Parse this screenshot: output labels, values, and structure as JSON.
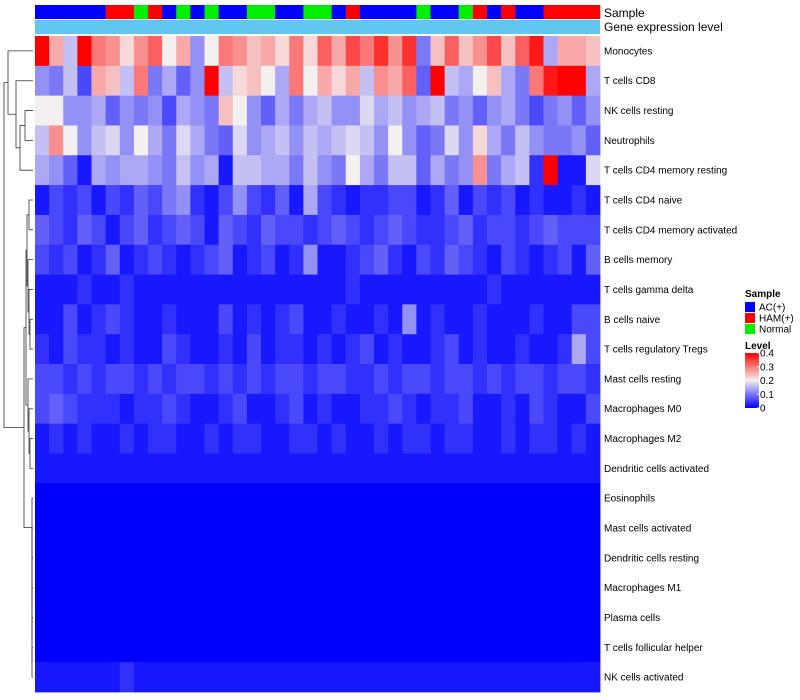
{
  "chart_data": {
    "type": "heatmap",
    "title": "",
    "annotations": {
      "sample_label": "Sample",
      "expression_label": "Gene expression level",
      "sample_codes": [
        "A",
        "A",
        "A",
        "A",
        "A",
        "H",
        "H",
        "N",
        "H",
        "A",
        "N",
        "A",
        "N",
        "A",
        "A",
        "N",
        "N",
        "A",
        "A",
        "N",
        "N",
        "A",
        "H",
        "A",
        "A",
        "A",
        "A",
        "N",
        "A",
        "A",
        "N",
        "H",
        "A",
        "H",
        "A",
        "A",
        "H",
        "H",
        "H",
        "H"
      ]
    },
    "rows": [
      "Monocytes",
      "T cells CD8",
      "NK cells resting",
      "Neutrophils",
      "T cells CD4 memory resting",
      "T cells CD4 naive",
      "T cells CD4 memory activated",
      "B cells memory",
      "T cells gamma delta",
      "B cells naive",
      "T cells regulatory  Tregs",
      "Mast cells resting",
      "Macrophages M0",
      "Macrophages M2",
      "Dendritic cells activated",
      "Eosinophils",
      "Mast cells activated",
      "Dendritic cells resting",
      "Macrophages M1",
      "Plasma cells",
      "T cells follicular helper",
      "NK cells activated"
    ],
    "values": [
      [
        0.4,
        0.26,
        0.16,
        0.4,
        0.3,
        0.28,
        0.22,
        0.28,
        0.32,
        0.2,
        0.26,
        0.12,
        0.2,
        0.3,
        0.28,
        0.24,
        0.26,
        0.22,
        0.3,
        0.22,
        0.32,
        0.26,
        0.34,
        0.3,
        0.36,
        0.28,
        0.36,
        0.1,
        0.24,
        0.32,
        0.24,
        0.28,
        0.34,
        0.24,
        0.32,
        0.38,
        0.14,
        0.26,
        0.26,
        0.24
      ],
      [
        0.12,
        0.1,
        0.16,
        0.06,
        0.26,
        0.24,
        0.16,
        0.3,
        0.1,
        0.14,
        0.08,
        0.12,
        0.4,
        0.16,
        0.22,
        0.24,
        0.2,
        0.14,
        0.3,
        0.2,
        0.26,
        0.22,
        0.26,
        0.16,
        0.28,
        0.26,
        0.32,
        0.08,
        0.4,
        0.16,
        0.14,
        0.2,
        0.24,
        0.14,
        0.1,
        0.3,
        0.38,
        0.42,
        0.4,
        0.14
      ],
      [
        0.2,
        0.2,
        0.12,
        0.12,
        0.14,
        0.08,
        0.12,
        0.1,
        0.12,
        0.06,
        0.14,
        0.12,
        0.1,
        0.24,
        0.2,
        0.12,
        0.08,
        0.14,
        0.1,
        0.14,
        0.16,
        0.12,
        0.12,
        0.18,
        0.14,
        0.16,
        0.12,
        0.14,
        0.16,
        0.1,
        0.12,
        0.08,
        0.12,
        0.14,
        0.1,
        0.06,
        0.1,
        0.12,
        0.08,
        0.12
      ],
      [
        0.16,
        0.28,
        0.2,
        0.12,
        0.16,
        0.18,
        0.12,
        0.2,
        0.14,
        0.1,
        0.18,
        0.14,
        0.1,
        0.08,
        0.18,
        0.12,
        0.14,
        0.16,
        0.12,
        0.16,
        0.14,
        0.16,
        0.18,
        0.16,
        0.12,
        0.2,
        0.12,
        0.08,
        0.1,
        0.18,
        0.12,
        0.22,
        0.14,
        0.1,
        0.16,
        0.12,
        0.1,
        0.1,
        0.12,
        0.08
      ],
      [
        0.14,
        0.12,
        0.08,
        0.02,
        0.14,
        0.12,
        0.14,
        0.14,
        0.12,
        0.1,
        0.16,
        0.12,
        0.14,
        0.02,
        0.16,
        0.16,
        0.14,
        0.14,
        0.1,
        0.16,
        0.12,
        0.1,
        0.2,
        0.14,
        0.1,
        0.16,
        0.16,
        0.08,
        0.14,
        0.1,
        0.12,
        0.28,
        0.1,
        0.14,
        0.16,
        0.04,
        0.42,
        0.02,
        0.02,
        0.18
      ],
      [
        0.02,
        0.06,
        0.04,
        0.06,
        0.02,
        0.06,
        0.04,
        0.08,
        0.06,
        0.1,
        0.12,
        0.04,
        0.02,
        0.06,
        0.12,
        0.06,
        0.04,
        0.08,
        0.02,
        0.14,
        0.06,
        0.04,
        0.02,
        0.04,
        0.04,
        0.06,
        0.06,
        0.02,
        0.04,
        0.08,
        0.02,
        0.06,
        0.04,
        0.06,
        0.02,
        0.04,
        0.02,
        0.02,
        0.04,
        0.02
      ],
      [
        0.08,
        0.06,
        0.04,
        0.08,
        0.06,
        0.02,
        0.06,
        0.08,
        0.04,
        0.06,
        0.08,
        0.06,
        0.02,
        0.08,
        0.06,
        0.04,
        0.08,
        0.06,
        0.06,
        0.04,
        0.06,
        0.08,
        0.06,
        0.04,
        0.06,
        0.08,
        0.06,
        0.04,
        0.04,
        0.06,
        0.08,
        0.04,
        0.06,
        0.06,
        0.04,
        0.06,
        0.08,
        0.06,
        0.06,
        0.06
      ],
      [
        0.06,
        0.04,
        0.06,
        0.02,
        0.04,
        0.08,
        0.02,
        0.04,
        0.06,
        0.04,
        0.02,
        0.04,
        0.06,
        0.08,
        0.02,
        0.04,
        0.06,
        0.02,
        0.04,
        0.12,
        0.02,
        0.02,
        0.04,
        0.06,
        0.08,
        0.04,
        0.02,
        0.06,
        0.04,
        0.08,
        0.06,
        0.04,
        0.02,
        0.06,
        0.04,
        0.02,
        0.04,
        0.06,
        0.02,
        0.08
      ],
      [
        0.02,
        0.02,
        0.02,
        0.04,
        0.02,
        0.02,
        0.04,
        0.02,
        0.02,
        0.02,
        0.02,
        0.02,
        0.02,
        0.02,
        0.02,
        0.02,
        0.02,
        0.02,
        0.02,
        0.02,
        0.02,
        0.02,
        0.04,
        0.02,
        0.02,
        0.02,
        0.02,
        0.02,
        0.02,
        0.02,
        0.02,
        0.02,
        0.04,
        0.02,
        0.02,
        0.02,
        0.02,
        0.02,
        0.02,
        0.02
      ],
      [
        0.02,
        0.02,
        0.06,
        0.02,
        0.04,
        0.06,
        0.04,
        0.02,
        0.02,
        0.04,
        0.02,
        0.02,
        0.02,
        0.06,
        0.02,
        0.04,
        0.02,
        0.04,
        0.06,
        0.02,
        0.02,
        0.04,
        0.02,
        0.02,
        0.04,
        0.02,
        0.12,
        0.02,
        0.04,
        0.02,
        0.02,
        0.04,
        0.02,
        0.02,
        0.02,
        0.04,
        0.02,
        0.02,
        0.06,
        0.06
      ],
      [
        0.04,
        0.02,
        0.06,
        0.04,
        0.04,
        0.02,
        0.04,
        0.02,
        0.02,
        0.06,
        0.04,
        0.02,
        0.02,
        0.04,
        0.02,
        0.06,
        0.02,
        0.04,
        0.04,
        0.02,
        0.04,
        0.02,
        0.04,
        0.06,
        0.02,
        0.04,
        0.02,
        0.02,
        0.04,
        0.06,
        0.02,
        0.04,
        0.02,
        0.02,
        0.04,
        0.02,
        0.02,
        0.04,
        0.14,
        0.06
      ],
      [
        0.06,
        0.06,
        0.04,
        0.06,
        0.04,
        0.06,
        0.06,
        0.04,
        0.06,
        0.04,
        0.06,
        0.06,
        0.04,
        0.06,
        0.04,
        0.06,
        0.04,
        0.06,
        0.06,
        0.04,
        0.06,
        0.06,
        0.04,
        0.04,
        0.06,
        0.04,
        0.06,
        0.06,
        0.04,
        0.06,
        0.06,
        0.04,
        0.06,
        0.04,
        0.06,
        0.06,
        0.04,
        0.06,
        0.06,
        0.04
      ],
      [
        0.06,
        0.08,
        0.06,
        0.04,
        0.04,
        0.04,
        0.02,
        0.04,
        0.04,
        0.06,
        0.04,
        0.02,
        0.02,
        0.04,
        0.06,
        0.02,
        0.02,
        0.04,
        0.06,
        0.02,
        0.04,
        0.02,
        0.02,
        0.04,
        0.04,
        0.06,
        0.04,
        0.02,
        0.04,
        0.04,
        0.06,
        0.02,
        0.02,
        0.04,
        0.02,
        0.06,
        0.04,
        0.02,
        0.02,
        0.06
      ],
      [
        0.02,
        0.04,
        0.02,
        0.04,
        0.02,
        0.02,
        0.04,
        0.02,
        0.04,
        0.04,
        0.02,
        0.02,
        0.04,
        0.02,
        0.04,
        0.04,
        0.02,
        0.02,
        0.04,
        0.04,
        0.02,
        0.04,
        0.02,
        0.02,
        0.04,
        0.02,
        0.04,
        0.04,
        0.02,
        0.04,
        0.04,
        0.02,
        0.02,
        0.04,
        0.02,
        0.04,
        0.04,
        0.02,
        0.04,
        0.02
      ],
      [
        0.02,
        0.02,
        0.02,
        0.02,
        0.02,
        0.02,
        0.02,
        0.02,
        0.02,
        0.02,
        0.02,
        0.02,
        0.02,
        0.02,
        0.02,
        0.02,
        0.02,
        0.02,
        0.02,
        0.02,
        0.02,
        0.02,
        0.02,
        0.02,
        0.02,
        0.02,
        0.02,
        0.02,
        0.02,
        0.02,
        0.02,
        0.02,
        0.02,
        0.02,
        0.02,
        0.02,
        0.02,
        0.02,
        0.02,
        0.02
      ],
      [
        0,
        0,
        0,
        0,
        0,
        0,
        0,
        0,
        0,
        0,
        0,
        0,
        0,
        0,
        0,
        0,
        0,
        0,
        0,
        0,
        0,
        0,
        0,
        0,
        0,
        0,
        0,
        0,
        0,
        0,
        0,
        0,
        0,
        0,
        0,
        0,
        0,
        0,
        0,
        0
      ],
      [
        0,
        0,
        0,
        0,
        0,
        0,
        0,
        0,
        0,
        0,
        0,
        0,
        0,
        0,
        0,
        0,
        0,
        0,
        0,
        0,
        0,
        0,
        0,
        0,
        0,
        0,
        0,
        0,
        0,
        0,
        0,
        0,
        0,
        0,
        0,
        0,
        0,
        0,
        0,
        0
      ],
      [
        0,
        0,
        0,
        0,
        0,
        0,
        0,
        0,
        0,
        0,
        0,
        0,
        0,
        0,
        0,
        0,
        0,
        0,
        0,
        0,
        0,
        0,
        0,
        0,
        0,
        0,
        0,
        0,
        0,
        0,
        0,
        0,
        0,
        0,
        0,
        0,
        0,
        0,
        0,
        0
      ],
      [
        0,
        0,
        0,
        0,
        0,
        0,
        0,
        0,
        0,
        0,
        0,
        0,
        0,
        0,
        0,
        0,
        0,
        0,
        0,
        0,
        0,
        0,
        0,
        0,
        0,
        0,
        0,
        0,
        0,
        0,
        0,
        0,
        0,
        0,
        0,
        0,
        0,
        0,
        0,
        0
      ],
      [
        0,
        0,
        0,
        0,
        0,
        0,
        0,
        0,
        0,
        0,
        0,
        0,
        0,
        0,
        0,
        0,
        0,
        0,
        0,
        0,
        0,
        0,
        0,
        0,
        0,
        0,
        0,
        0,
        0,
        0,
        0,
        0,
        0,
        0,
        0,
        0,
        0,
        0,
        0,
        0
      ],
      [
        0,
        0,
        0,
        0,
        0,
        0,
        0,
        0,
        0,
        0,
        0,
        0,
        0,
        0,
        0,
        0,
        0,
        0,
        0,
        0,
        0,
        0,
        0,
        0,
        0,
        0,
        0,
        0,
        0,
        0,
        0,
        0,
        0,
        0,
        0,
        0,
        0,
        0,
        0,
        0
      ],
      [
        0.02,
        0.02,
        0.02,
        0.02,
        0.02,
        0.02,
        0.04,
        0.02,
        0.02,
        0.02,
        0.02,
        0.02,
        0.02,
        0.02,
        0.02,
        0.02,
        0.02,
        0.02,
        0.02,
        0.02,
        0.02,
        0.02,
        0.02,
        0.02,
        0.02,
        0.02,
        0.02,
        0.02,
        0.02,
        0.02,
        0.02,
        0.02,
        0.02,
        0.02,
        0.02,
        0.02,
        0.02,
        0.02,
        0.02,
        0.02
      ]
    ],
    "color_scale": {
      "min": 0,
      "max": 0.4,
      "low_color": "#0000ff",
      "mid_color": "#f5f0f0",
      "high_color": "#ff0000",
      "mid_value": 0.2
    },
    "legend": {
      "placement": "right",
      "sample_title": "Sample",
      "sample_entries": [
        {
          "code": "A",
          "label": "AC(+)",
          "color": "#0000ff"
        },
        {
          "code": "H",
          "label": "HAM(+)",
          "color": "#ff0000"
        },
        {
          "code": "N",
          "label": "Normal",
          "color": "#00ee00"
        }
      ],
      "level_title": "Level",
      "level_ticks": [
        {
          "value": 0.4,
          "label": "0.4"
        },
        {
          "value": 0.3,
          "label": "0.3"
        },
        {
          "value": 0.2,
          "label": "0.2"
        },
        {
          "value": 0.1,
          "label": "0.1"
        },
        {
          "value": 0,
          "label": "0"
        }
      ]
    },
    "expression_bar_color": "#62c7f0",
    "dendrogram": "row clustering tree on left"
  }
}
